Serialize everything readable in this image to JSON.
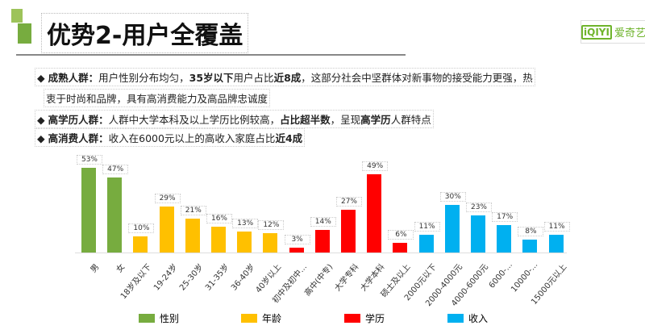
{
  "header": {
    "title": "优势2-用户全覆盖",
    "logo_text": "爱奇艺",
    "logo_mark": "iQIYI"
  },
  "bullets": [
    {
      "head": "成熟人群",
      "sep": "：",
      "parts": [
        "用户性别分布均匀，",
        "35岁以下",
        "用户占比",
        "近8成",
        "，这部分社会中坚群体对新事物的接受能力更强，热"
      ],
      "line2": "衷于时尚和品牌，具有高消费能力及高品牌忠诚度"
    },
    {
      "head": "高学历人群",
      "sep": "：",
      "parts": [
        "人群中大学本科及以上学历比例较高，",
        "占比超半数",
        "，呈现",
        "高学历",
        "人群特点"
      ]
    },
    {
      "head": "高消费人群",
      "sep": "：",
      "parts": [
        "收入在6000元以上的高收入家庭占比",
        "近4成"
      ]
    }
  ],
  "chart_data": {
    "type": "bar",
    "categories": [
      "男",
      "女",
      "18岁及以下",
      "19-24岁",
      "25-30岁",
      "31-35岁",
      "36-40岁",
      "40岁以上",
      "初中及初中...",
      "高中(中专)",
      "大学专科",
      "大学本科",
      "硕士及以上",
      "2000元以下",
      "2000-4000元",
      "4000-6000元",
      "6000-...",
      "10000-...",
      "15000元以上"
    ],
    "values": [
      53,
      47,
      10,
      29,
      21,
      16,
      13,
      12,
      3,
      14,
      27,
      49,
      6,
      11,
      30,
      23,
      17,
      8,
      11
    ],
    "value_labels": [
      "53%",
      "47%",
      "10%",
      "29%",
      "21%",
      "16%",
      "13%",
      "12%",
      "3%",
      "14%",
      "27%",
      "49%",
      "6%",
      "11%",
      "30%",
      "23%",
      "17%",
      "8%",
      "11%"
    ],
    "groups": [
      0,
      0,
      1,
      1,
      1,
      1,
      1,
      1,
      2,
      2,
      2,
      2,
      2,
      3,
      3,
      3,
      3,
      3,
      3
    ],
    "series": [
      {
        "name": "性别",
        "color": "#77ac3f"
      },
      {
        "name": "年龄",
        "color": "#ffc000"
      },
      {
        "name": "学历",
        "color": "#ff0000"
      },
      {
        "name": "收入",
        "color": "#00b0f0"
      }
    ],
    "unit": "%"
  }
}
